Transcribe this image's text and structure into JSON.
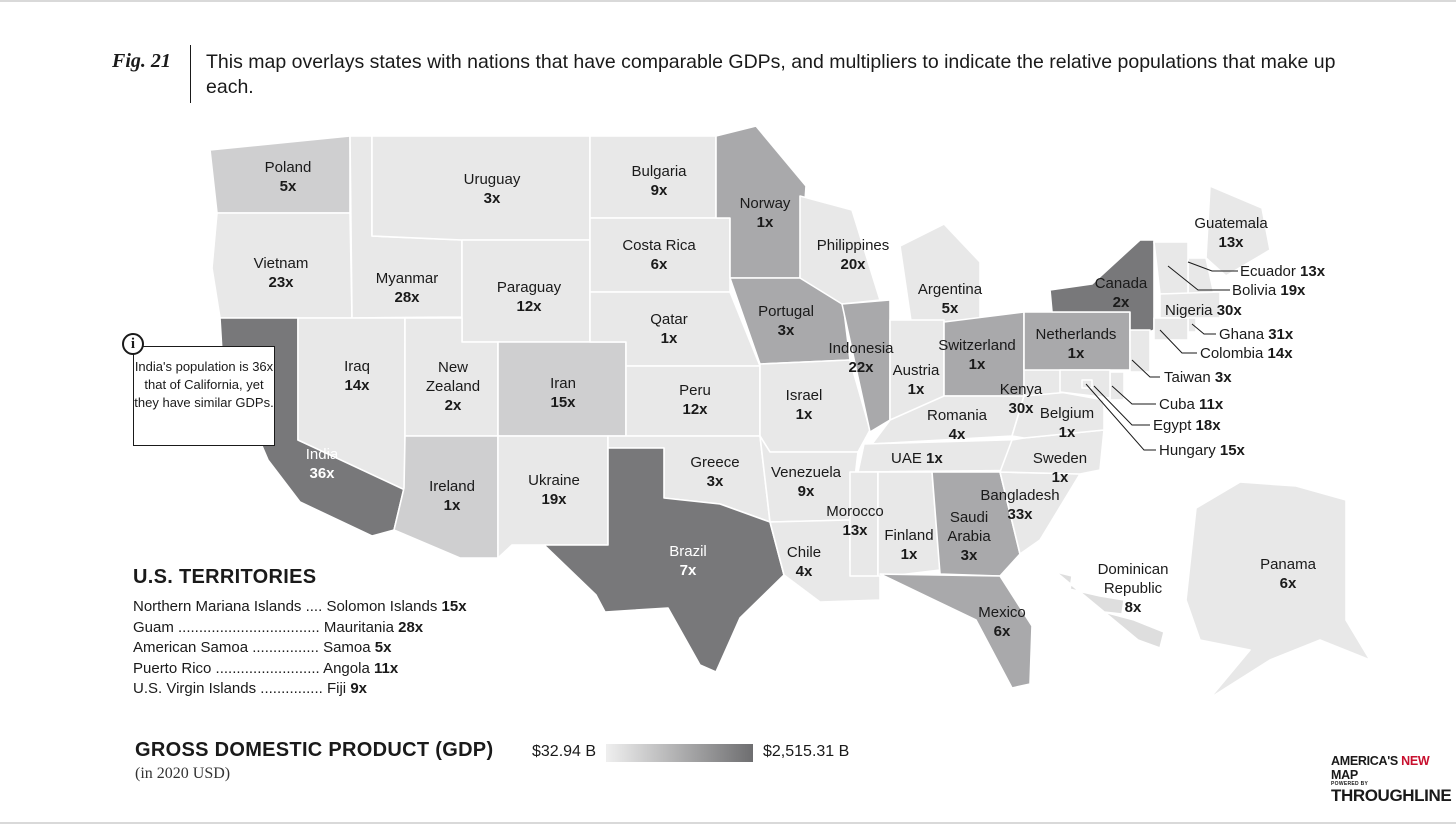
{
  "figure": {
    "label": "Fig. 21",
    "caption": "This map overlays states with nations that have comparable GDPs, and multipliers to indicate the relative populations that make up each."
  },
  "colors": {
    "light": "#e8e8e8",
    "light2": "#dedede",
    "mid": "#cfcfd0",
    "midDark": "#a9a9ab",
    "dark": "#78787a",
    "legend_low": "#efefef",
    "legend_high": "#6e6e70",
    "brand_red": "#c8102e"
  },
  "states": [
    {
      "id": "WA",
      "country": "Poland",
      "mult": "5x"
    },
    {
      "id": "OR",
      "country": "Vietnam",
      "mult": "23x"
    },
    {
      "id": "CA",
      "country": "India",
      "mult": "36x"
    },
    {
      "id": "ID",
      "country": "Myanmar",
      "mult": "28x"
    },
    {
      "id": "NV",
      "country": "Iraq",
      "mult": "14x"
    },
    {
      "id": "MT",
      "country": "Uruguay",
      "mult": "3x"
    },
    {
      "id": "WY",
      "country": "Paraguay",
      "mult": "12x"
    },
    {
      "id": "UT",
      "country": "New Zealand",
      "mult": "2x"
    },
    {
      "id": "CO",
      "country": "Iran",
      "mult": "15x"
    },
    {
      "id": "AZ",
      "country": "Ireland",
      "mult": "1x"
    },
    {
      "id": "NM",
      "country": "Ukraine",
      "mult": "19x"
    },
    {
      "id": "ND",
      "country": "Bulgaria",
      "mult": "9x"
    },
    {
      "id": "SD",
      "country": "Costa Rica",
      "mult": "6x"
    },
    {
      "id": "NE",
      "country": "Qatar",
      "mult": "1x"
    },
    {
      "id": "KS",
      "country": "Peru",
      "mult": "12x"
    },
    {
      "id": "OK",
      "country": "Greece",
      "mult": "3x"
    },
    {
      "id": "TX",
      "country": "Brazil",
      "mult": "7x"
    },
    {
      "id": "MN",
      "country": "Norway",
      "mult": "1x"
    },
    {
      "id": "IA",
      "country": "Portugal",
      "mult": "3x"
    },
    {
      "id": "MO",
      "country": "Israel",
      "mult": "1x"
    },
    {
      "id": "AR",
      "country": "Venezuela",
      "mult": "9x"
    },
    {
      "id": "LA",
      "country": "Chile",
      "mult": "4x"
    },
    {
      "id": "WI",
      "country": "Philippines",
      "mult": "20x"
    },
    {
      "id": "IL",
      "country": "Indonesia",
      "mult": "22x"
    },
    {
      "id": "MI",
      "country": "Argentina",
      "mult": "5x"
    },
    {
      "id": "IN",
      "country": "Austria",
      "mult": "1x"
    },
    {
      "id": "OH",
      "country": "Switzerland",
      "mult": "1x"
    },
    {
      "id": "KY",
      "country": "Romania",
      "mult": "4x"
    },
    {
      "id": "TN",
      "country": "UAE",
      "mult": "1x"
    },
    {
      "id": "MS",
      "country": "Morocco",
      "mult": "13x"
    },
    {
      "id": "AL",
      "country": "Finland",
      "mult": "1x"
    },
    {
      "id": "GA",
      "country": "Saudi Arabia",
      "mult": "3x"
    },
    {
      "id": "FL",
      "country": "Mexico",
      "mult": "6x"
    },
    {
      "id": "SC",
      "country": "Bangladesh",
      "mult": "33x"
    },
    {
      "id": "NC",
      "country": "Sweden",
      "mult": "1x"
    },
    {
      "id": "VA",
      "country": "Belgium",
      "mult": "1x"
    },
    {
      "id": "WV",
      "country": "Kenya",
      "mult": "30x"
    },
    {
      "id": "PA",
      "country": "Netherlands",
      "mult": "1x"
    },
    {
      "id": "NY",
      "country": "Canada",
      "mult": "2x"
    },
    {
      "id": "ME",
      "country": "Guatemala",
      "mult": "13x"
    },
    {
      "id": "NH",
      "country": "Ecuador",
      "mult": "13x"
    },
    {
      "id": "VT",
      "country": "Bolivia",
      "mult": "19x"
    },
    {
      "id": "MA",
      "country": "Nigeria",
      "mult": "30x"
    },
    {
      "id": "RI",
      "country": "Ghana",
      "mult": "31x"
    },
    {
      "id": "CT",
      "country": "Colombia",
      "mult": "14x"
    },
    {
      "id": "NJ",
      "country": "Taiwan",
      "mult": "3x"
    },
    {
      "id": "DE",
      "country": "Cuba",
      "mult": "11x"
    },
    {
      "id": "MD",
      "country": "Egypt",
      "mult": "18x"
    },
    {
      "id": "DC",
      "country": "Hungary",
      "mult": "15x"
    },
    {
      "id": "HI",
      "country": "Dominican Republic",
      "mult": "8x"
    },
    {
      "id": "AK",
      "country": "Panama",
      "mult": "6x"
    }
  ],
  "callout": {
    "icon": "info-icon",
    "text": "India's population is 36x that of California, yet they have similar GDPs."
  },
  "territories": {
    "title": "U.S. TERRITORIES",
    "items": [
      {
        "name": "Northern Mariana Islands ....",
        "country": "Solomon Islands",
        "mult": "15x"
      },
      {
        "name": "Guam ..................................",
        "country": "Mauritania",
        "mult": "28x"
      },
      {
        "name": "American Samoa ................",
        "country": "Samoa",
        "mult": "5x"
      },
      {
        "name": "Puerto Rico .........................",
        "country": "Angola",
        "mult": "11x"
      },
      {
        "name": "U.S. Virgin Islands ...............",
        "country": "Fiji",
        "mult": "9x"
      }
    ]
  },
  "legend": {
    "title": "GROSS DOMESTIC PRODUCT (GDP)",
    "subtitle": "(in 2020 USD)",
    "min_label": "$32.94 B",
    "max_label": "$2,515.31 B"
  },
  "brand": {
    "part1": "AMERICA'S ",
    "part2": "NEW",
    "part3": " MAP",
    "powered_by": "POWERED BY",
    "name": "THROUGHLINE"
  }
}
